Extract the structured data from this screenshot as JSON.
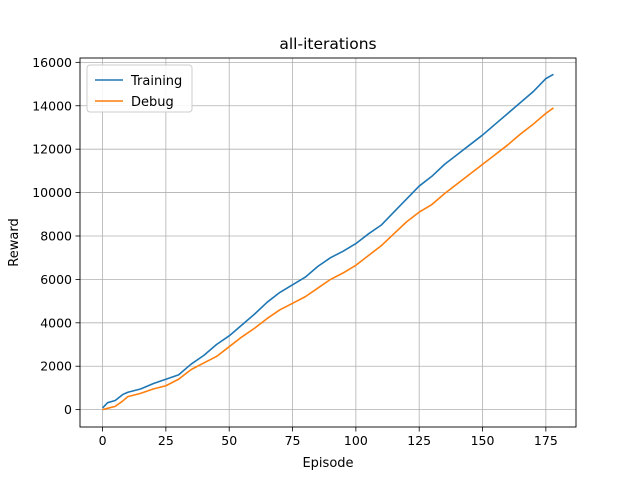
{
  "chart_data": {
    "type": "line",
    "title": "all-iterations",
    "xlabel": "Episode",
    "ylabel": "Reward",
    "xlim": [
      -8.9,
      186.9
    ],
    "ylim": [
      -800,
      16200
    ],
    "xticks": [
      0,
      25,
      50,
      75,
      100,
      125,
      150,
      175
    ],
    "yticks": [
      0,
      2000,
      4000,
      6000,
      8000,
      10000,
      12000,
      14000,
      16000
    ],
    "grid": true,
    "legend_position": "top-left",
    "series": [
      {
        "name": "Training",
        "color": "#1f77b4",
        "x": [
          0,
          2,
          5,
          8,
          10,
          15,
          20,
          25,
          30,
          35,
          40,
          45,
          50,
          55,
          60,
          65,
          70,
          75,
          80,
          85,
          90,
          95,
          100,
          105,
          110,
          115,
          120,
          125,
          130,
          135,
          140,
          145,
          150,
          155,
          160,
          165,
          170,
          175,
          178
        ],
        "values": [
          80,
          320,
          420,
          700,
          800,
          950,
          1200,
          1400,
          1600,
          2100,
          2500,
          3000,
          3400,
          3900,
          4400,
          4950,
          5400,
          5750,
          6100,
          6600,
          7000,
          7300,
          7650,
          8100,
          8500,
          9100,
          9700,
          10300,
          10750,
          11300,
          11750,
          12200,
          12650,
          13150,
          13650,
          14150,
          14650,
          15250,
          15450
        ]
      },
      {
        "name": "Debug",
        "color": "#ff7f0e",
        "x": [
          0,
          2,
          5,
          8,
          10,
          15,
          20,
          25,
          30,
          35,
          40,
          45,
          50,
          55,
          60,
          65,
          70,
          75,
          80,
          85,
          90,
          95,
          100,
          105,
          110,
          115,
          120,
          125,
          130,
          135,
          140,
          145,
          150,
          155,
          160,
          165,
          170,
          175,
          178
        ],
        "values": [
          0,
          60,
          150,
          400,
          600,
          750,
          950,
          1100,
          1400,
          1850,
          2150,
          2450,
          2900,
          3350,
          3750,
          4200,
          4600,
          4900,
          5200,
          5600,
          6000,
          6300,
          6650,
          7100,
          7550,
          8100,
          8650,
          9100,
          9450,
          9950,
          10400,
          10850,
          11300,
          11750,
          12200,
          12700,
          13150,
          13650,
          13900
        ]
      }
    ]
  }
}
